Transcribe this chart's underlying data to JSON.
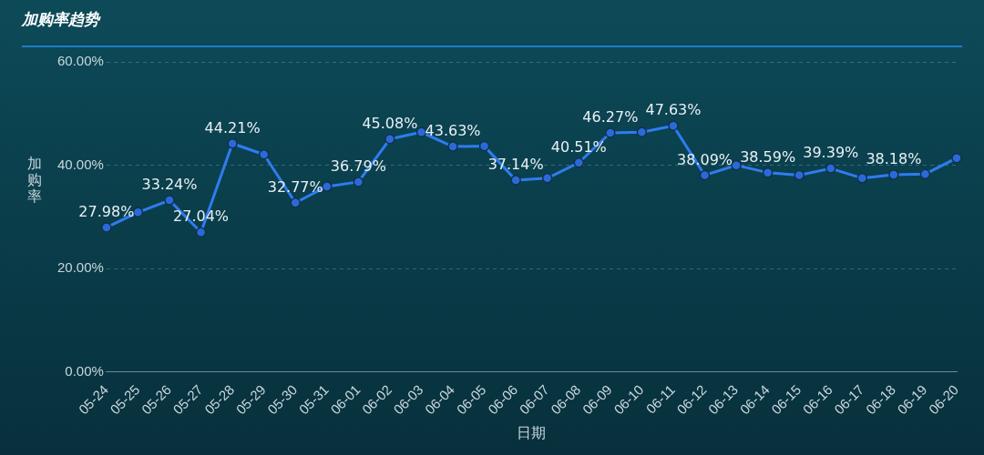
{
  "chart_data": {
    "type": "line",
    "title": "加购率趋势",
    "xlabel": "日期",
    "ylabel": "加购率",
    "categories": [
      "05-24",
      "05-25",
      "05-26",
      "05-27",
      "05-28",
      "05-29",
      "05-30",
      "05-31",
      "06-01",
      "06-02",
      "06-03",
      "06-04",
      "06-05",
      "06-06",
      "06-07",
      "06-08",
      "06-09",
      "06-10",
      "06-11",
      "06-12",
      "06-13",
      "06-14",
      "06-15",
      "06-16",
      "06-17",
      "06-18",
      "06-19",
      "06-20"
    ],
    "series": [
      {
        "color": "#2f7cf0",
        "values": [
          27.98,
          30.9,
          33.24,
          27.04,
          44.21,
          42.1,
          32.77,
          35.9,
          36.79,
          45.08,
          46.4,
          43.63,
          43.7,
          37.14,
          37.5,
          40.51,
          46.27,
          46.4,
          47.63,
          38.09,
          40.0,
          38.59,
          38.1,
          39.39,
          37.5,
          38.18,
          38.3,
          41.4
        ],
        "value_labels": [
          "27.98%",
          null,
          "33.24%",
          "27.04%",
          "44.21%",
          null,
          "32.77%",
          null,
          "36.79%",
          "45.08%",
          null,
          "43.63%",
          null,
          "37.14%",
          null,
          "40.51%",
          "46.27%",
          null,
          "47.63%",
          "38.09%",
          null,
          "38.59%",
          null,
          "39.39%",
          null,
          "38.18%",
          null,
          null
        ]
      }
    ],
    "ylim": [
      0,
      60
    ],
    "yticks": [
      {
        "value": 0,
        "label": "0.00%"
      },
      {
        "value": 20,
        "label": "20.00%"
      },
      {
        "value": 40,
        "label": "40.00%"
      },
      {
        "value": 60,
        "label": "60.00%"
      }
    ],
    "grid": "y",
    "legend": false,
    "marker": "circle",
    "line_style": "solid"
  }
}
